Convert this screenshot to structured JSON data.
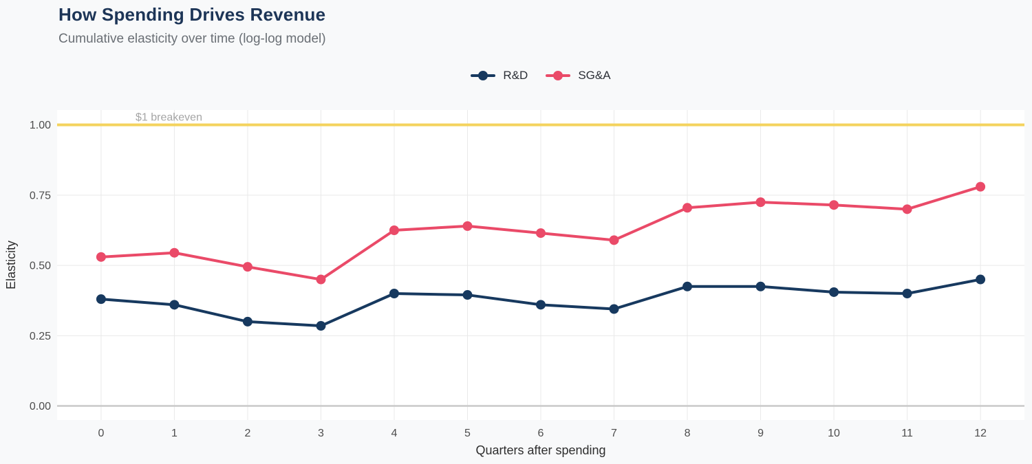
{
  "page": {
    "background": "#f8f9fa"
  },
  "header": {
    "title": "How Spending Drives Revenue",
    "subtitle": "Cumulative elasticity over time (log-log model)",
    "title_color": "#1d3557"
  },
  "legend": {
    "items": [
      {
        "label": "R&D",
        "color": "#17395f"
      },
      {
        "label": "SG&A",
        "color": "#ea4a68"
      }
    ]
  },
  "chart_data": {
    "type": "line",
    "title": "How Spending Drives Revenue",
    "subtitle": "Cumulative elasticity over time (log-log model)",
    "xlabel": "Quarters after spending",
    "ylabel": "Elasticity",
    "x": [
      0,
      1,
      2,
      3,
      4,
      5,
      6,
      7,
      8,
      9,
      10,
      11,
      12
    ],
    "series": [
      {
        "name": "R&D",
        "color": "#17395f",
        "values": [
          0.38,
          0.36,
          0.3,
          0.285,
          0.4,
          0.395,
          0.36,
          0.345,
          0.425,
          0.425,
          0.405,
          0.4,
          0.45
        ]
      },
      {
        "name": "SG&A",
        "color": "#ea4a68",
        "values": [
          0.53,
          0.545,
          0.495,
          0.45,
          0.625,
          0.64,
          0.615,
          0.59,
          0.705,
          0.725,
          0.715,
          0.7,
          0.78
        ]
      }
    ],
    "reference_line": {
      "value": 1.0,
      "label": "$1 breakeven",
      "color": "#f4d35e"
    },
    "y_ticks": [
      0,
      0.25,
      0.5,
      0.75,
      1.0
    ],
    "y_tick_labels": [
      "0.00",
      "0.25",
      "0.50",
      "0.75",
      "1.00"
    ],
    "x_tick_labels": [
      "0",
      "1",
      "2",
      "3",
      "4",
      "5",
      "6",
      "7",
      "8",
      "9",
      "10",
      "11",
      "12"
    ],
    "xlim": [
      -0.6,
      12.6
    ],
    "ylim": [
      -0.05,
      1.053
    ],
    "grid": true,
    "legend_position": "top-center",
    "colors": {
      "plot_bg": "#ffffff",
      "grid": "#e9e9e9",
      "zero_line": "#c9c9c9",
      "tick_text": "#4d4d4d",
      "axis_title_text": "#2e2e2e",
      "breakeven_text": "#a5a5a5"
    }
  }
}
